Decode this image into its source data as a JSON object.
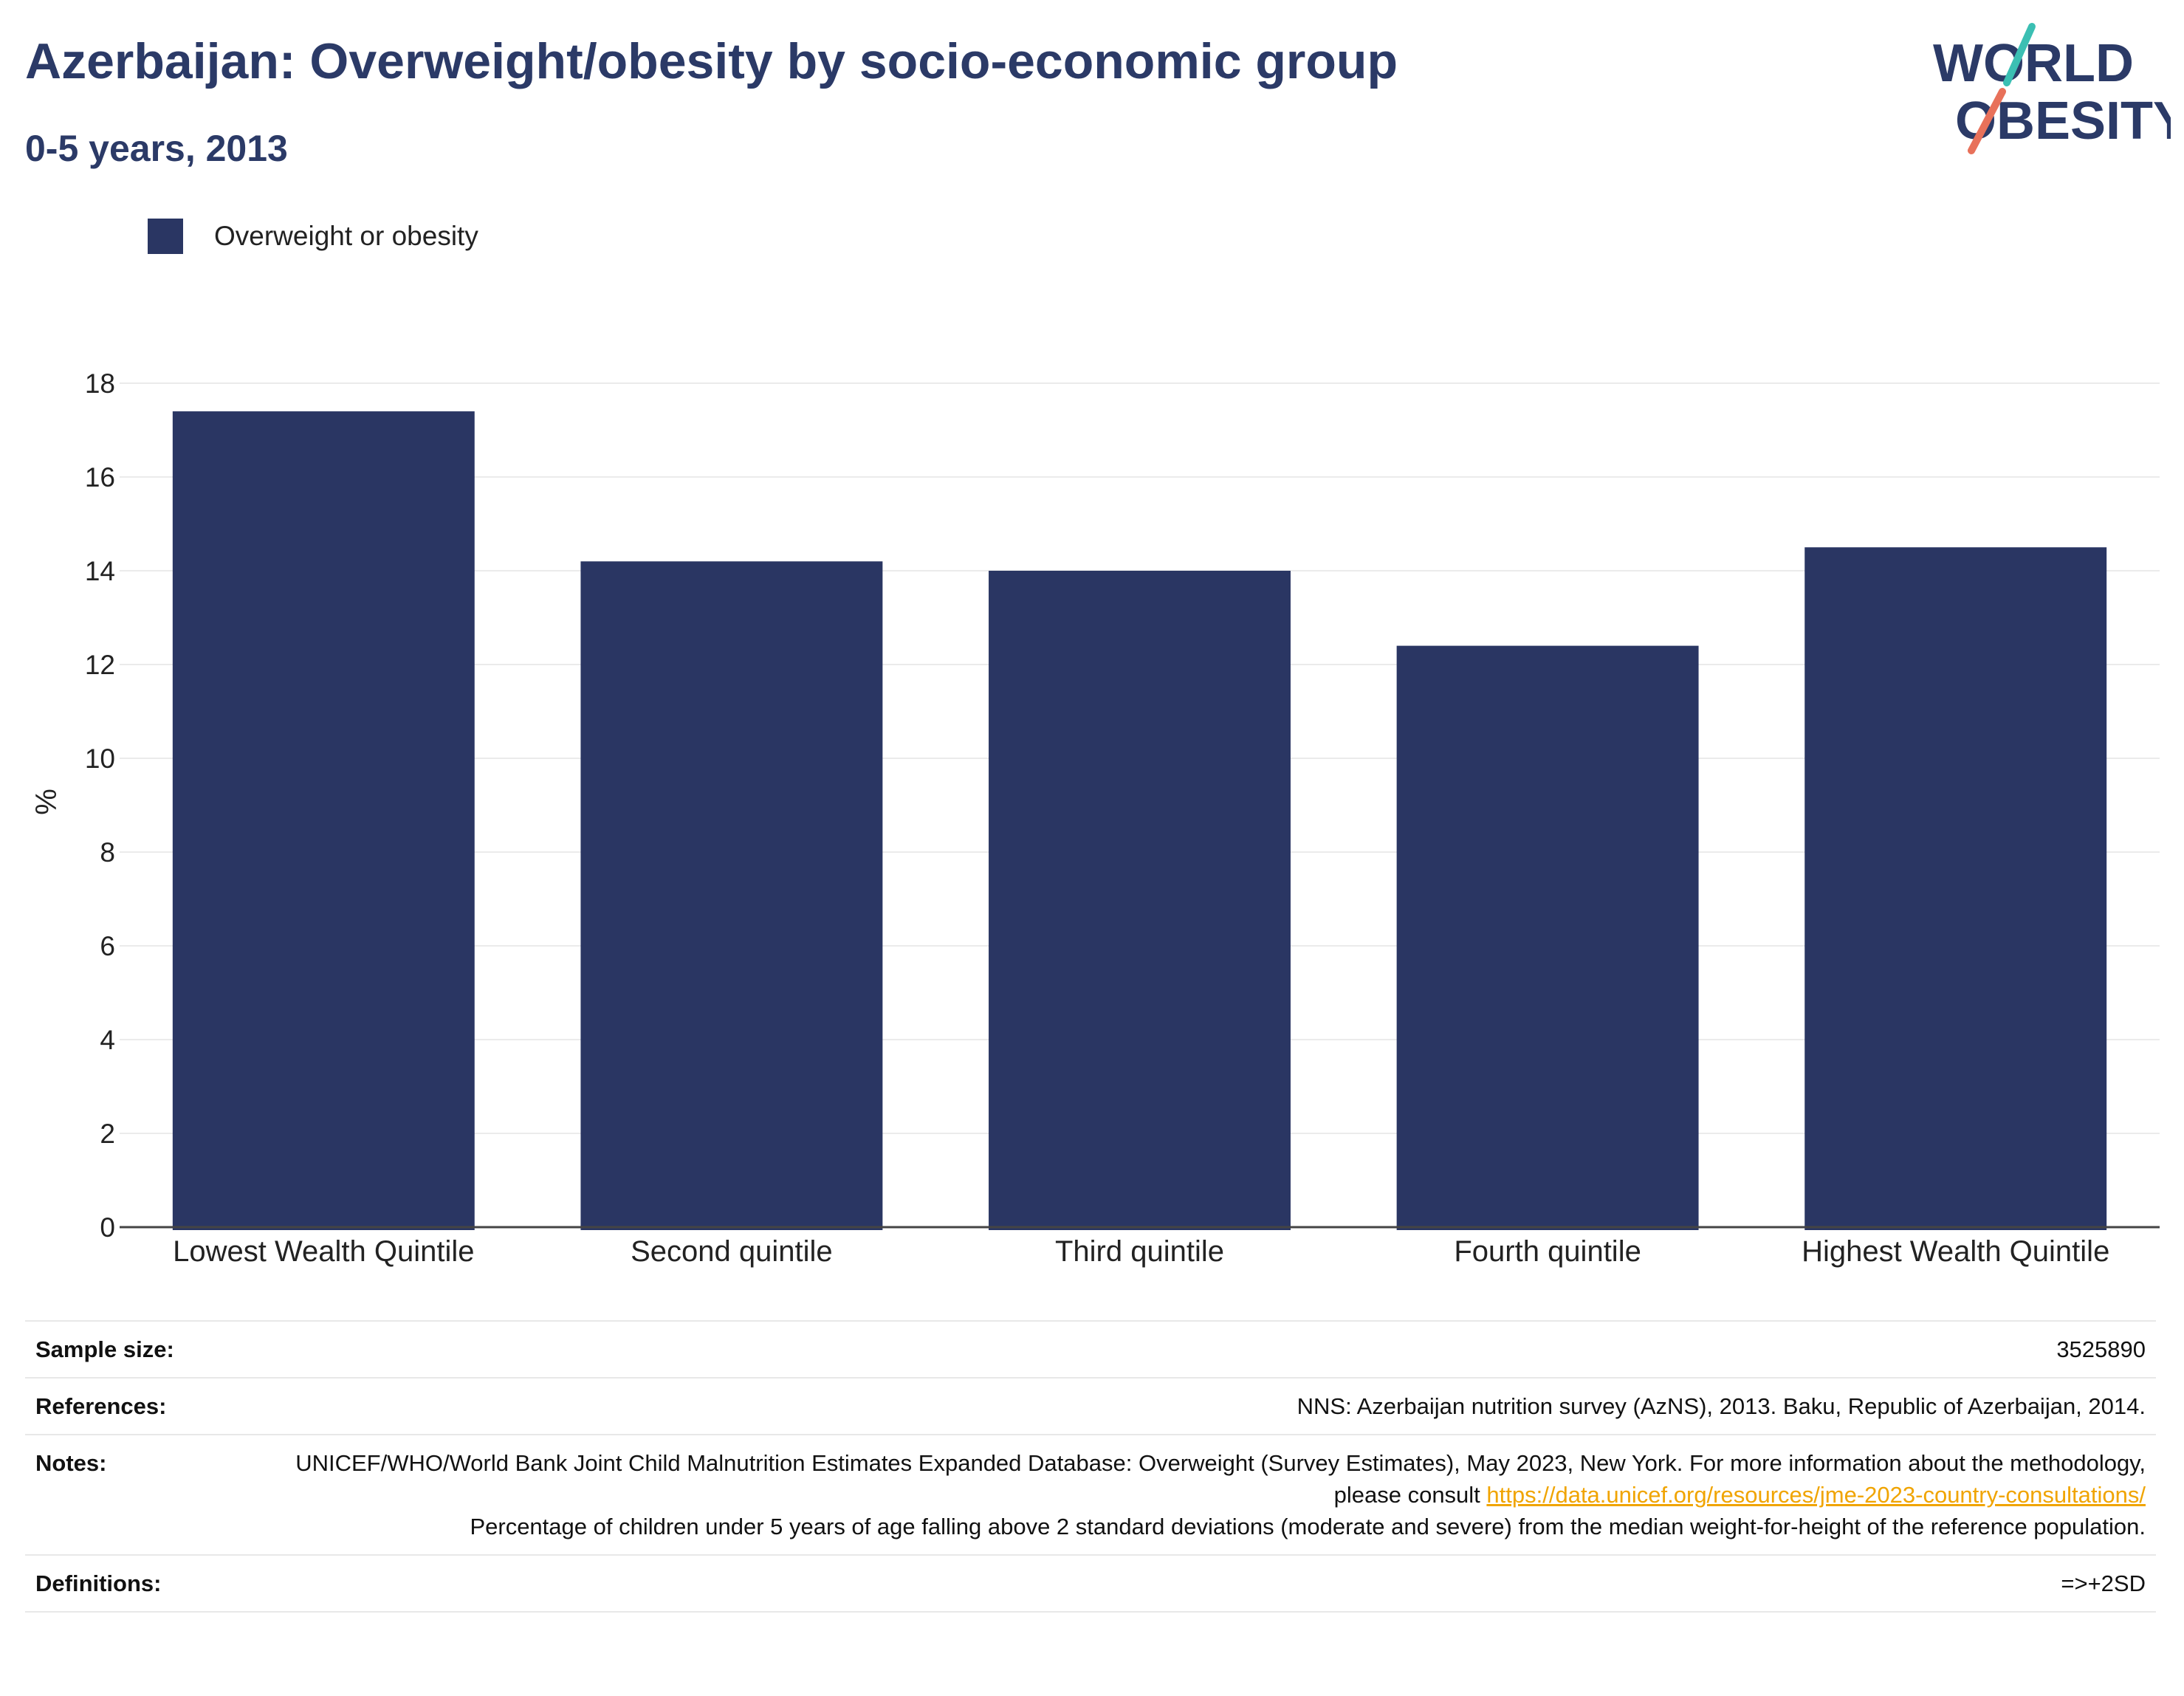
{
  "header": {
    "title": "Azerbaijan: Overweight/obesity by socio-economic group",
    "subtitle": "0-5 years, 2013"
  },
  "logo": {
    "line1": "WORLD",
    "line2": "OBESITY",
    "colors": {
      "text": "#2b3a67",
      "slash_top": "#3bbfb3",
      "slash_bottom": "#e8715a"
    }
  },
  "legend": {
    "label": "Overweight or obesity"
  },
  "colors": {
    "bar": "#2a3663",
    "grid": "#ebebeb",
    "axis": "#444444",
    "link": "#f0a400"
  },
  "chart_data": {
    "type": "bar",
    "categories": [
      "Lowest Wealth Quintile",
      "Second quintile",
      "Third quintile",
      "Fourth quintile",
      "Highest Wealth Quintile"
    ],
    "series": [
      {
        "name": "Overweight or obesity",
        "values": [
          17.4,
          14.2,
          14.0,
          12.4,
          14.5
        ]
      }
    ],
    "title": "Azerbaijan: Overweight/obesity by socio-economic group",
    "subtitle": "0-5 years, 2013",
    "xlabel": "",
    "ylabel": "%",
    "ylim": [
      0,
      18
    ],
    "yticks": [
      0,
      2,
      4,
      6,
      8,
      10,
      12,
      14,
      16,
      18
    ],
    "grid": true,
    "legend_position": "top-left"
  },
  "info": {
    "sample_size": {
      "label": "Sample size:",
      "value": "3525890"
    },
    "references": {
      "label": "References:",
      "value": "NNS: Azerbaijan nutrition survey (AzNS), 2013. Baku, Republic of Azerbaijan, 2014."
    },
    "notes": {
      "label": "Notes:",
      "text1": "UNICEF/WHO/World Bank Joint Child Malnutrition Estimates Expanded Database: Overweight (Survey Estimates), May 2023, New York. For more information about the methodology, please consult ",
      "link": "https://data.unicef.org/resources/jme-2023-country-consultations/",
      "text2": "Percentage of children under 5 years of age falling above 2 standard deviations (moderate and severe) from the median weight-for-height of the reference population."
    },
    "definitions": {
      "label": "Definitions:",
      "value": "=>+2SD"
    }
  }
}
